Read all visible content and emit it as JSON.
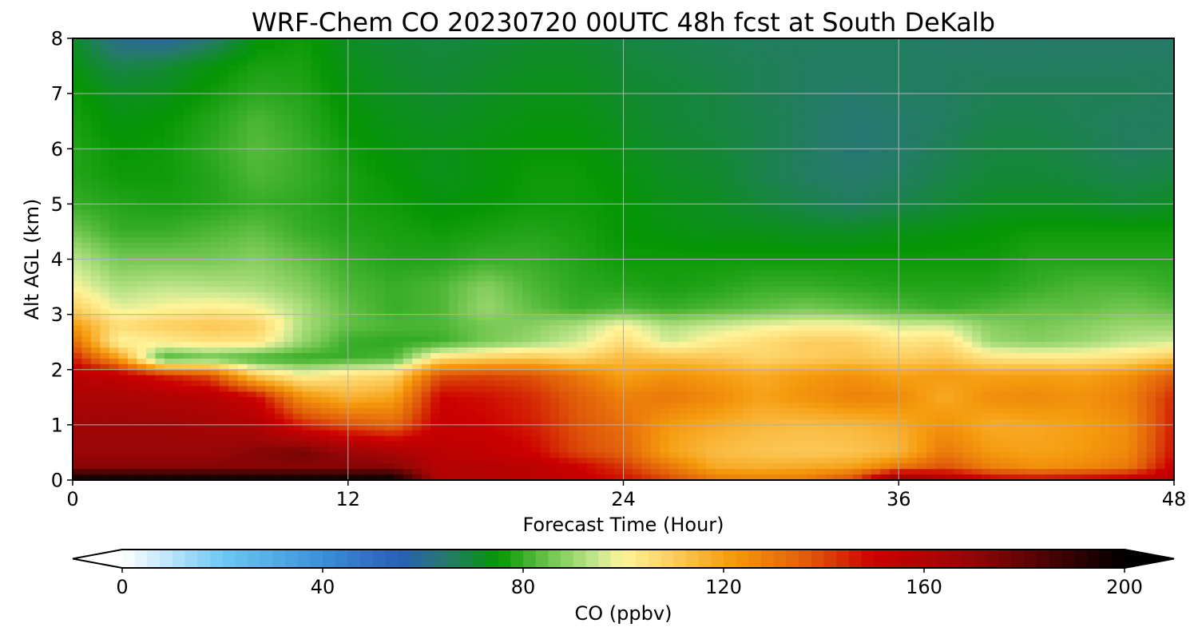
{
  "chart_data": {
    "type": "heatmap",
    "title": "WRF-Chem CO  20230720 00UTC 48h fcst at South DeKalb",
    "xlabel": "Forecast Time (Hour)",
    "ylabel": "Alt AGL (km)",
    "xlim": [
      0,
      48
    ],
    "ylim": [
      0,
      8
    ],
    "xticks": [
      0,
      12,
      24,
      36,
      48
    ],
    "yticks": [
      0,
      1,
      2,
      3,
      4,
      5,
      6,
      7,
      8
    ],
    "grid": true,
    "colorbar": {
      "label": "CO  (ppbv)",
      "ticks": [
        0,
        40,
        80,
        120,
        160,
        200
      ],
      "range": [
        0,
        200
      ],
      "extend": "both",
      "colors": {
        "under": "#ffffff",
        "over": "#000000",
        "stops": [
          {
            "value": 0,
            "color": "#ffffff"
          },
          {
            "value": 20,
            "color": "#6ec8f4"
          },
          {
            "value": 40,
            "color": "#3d8fd6"
          },
          {
            "value": 55,
            "color": "#2a5fb8"
          },
          {
            "value": 65,
            "color": "#257a6a"
          },
          {
            "value": 75,
            "color": "#049604"
          },
          {
            "value": 85,
            "color": "#6cc44c"
          },
          {
            "value": 95,
            "color": "#c8e890"
          },
          {
            "value": 100,
            "color": "#fff49a"
          },
          {
            "value": 110,
            "color": "#fccd5e"
          },
          {
            "value": 122,
            "color": "#f59a0c"
          },
          {
            "value": 137,
            "color": "#e05a0a"
          },
          {
            "value": 150,
            "color": "#cc0000"
          },
          {
            "value": 168,
            "color": "#9a0606"
          },
          {
            "value": 185,
            "color": "#4a0303"
          },
          {
            "value": 200,
            "color": "#000000"
          }
        ]
      }
    },
    "field": {
      "units": "ppbv",
      "hours": [
        0,
        2,
        4,
        6,
        8,
        10,
        12,
        14,
        16,
        18,
        20,
        22,
        24,
        26,
        28,
        30,
        32,
        34,
        36,
        38,
        40,
        42,
        44,
        46,
        48
      ],
      "altitudes_km": [
        0,
        0.25,
        0.5,
        1,
        1.5,
        1.9,
        2.2,
        2.5,
        2.8,
        3.1,
        3.5,
        4,
        4.5,
        5,
        5.5,
        6,
        6.5,
        7,
        7.5,
        8
      ],
      "values": [
        [
          200,
          200,
          200,
          200,
          200,
          200,
          200,
          200,
          160,
          158,
          156,
          152,
          148,
          140,
          130,
          128,
          130,
          140,
          172,
          160,
          152,
          150,
          152,
          154,
          158
        ],
        [
          172,
          172,
          172,
          172,
          172,
          172,
          172,
          172,
          158,
          158,
          156,
          150,
          142,
          130,
          118,
          117,
          118,
          120,
          130,
          138,
          128,
          124,
          126,
          130,
          152
        ],
        [
          168,
          168,
          168,
          168,
          172,
          176,
          168,
          162,
          156,
          154,
          150,
          140,
          135,
          120,
          114,
          112,
          111,
          112,
          115,
          130,
          122,
          120,
          122,
          126,
          148
        ],
        [
          166,
          166,
          166,
          164,
          160,
          145,
          138,
          134,
          152,
          150,
          146,
          138,
          132,
          122,
          118,
          115,
          114,
          115,
          118,
          124,
          118,
          119,
          121,
          125,
          146
        ],
        [
          162,
          162,
          160,
          158,
          150,
          124,
          116,
          120,
          150,
          148,
          144,
          136,
          128,
          130,
          126,
          120,
          124,
          128,
          126,
          118,
          125,
          126,
          124,
          128,
          144
        ],
        [
          156,
          154,
          145,
          138,
          110,
          100,
          105,
          108,
          138,
          140,
          138,
          130,
          120,
          124,
          121,
          118,
          122,
          124,
          120,
          122,
          120,
          121,
          120,
          124,
          136
        ],
        [
          146,
          122,
          80,
          84,
          80,
          79,
          80,
          82,
          106,
          110,
          112,
          108,
          115,
          113,
          112,
          108,
          110,
          112,
          110,
          112,
          105,
          104,
          104,
          106,
          112
        ],
        [
          134,
          100,
          102,
          105,
          104,
          90,
          80,
          79,
          80,
          86,
          90,
          96,
          106,
          96,
          102,
          106,
          110,
          110,
          104,
          106,
          90,
          88,
          90,
          94,
          96
        ],
        [
          122,
          106,
          110,
          112,
          110,
          92,
          84,
          82,
          82,
          86,
          88,
          92,
          100,
          92,
          95,
          98,
          100,
          100,
          96,
          96,
          88,
          86,
          88,
          90,
          90
        ],
        [
          110,
          98,
          100,
          102,
          100,
          92,
          84,
          80,
          82,
          90,
          84,
          80,
          82,
          80,
          82,
          84,
          86,
          84,
          82,
          80,
          82,
          84,
          84,
          86,
          84
        ],
        [
          100,
          92,
          94,
          93,
          92,
          88,
          82,
          80,
          82,
          88,
          82,
          79,
          78,
          77,
          78,
          80,
          80,
          79,
          78,
          78,
          78,
          80,
          82,
          82,
          80
        ],
        [
          94,
          86,
          86,
          86,
          88,
          84,
          80,
          78,
          78,
          80,
          80,
          78,
          76,
          76,
          76,
          76,
          76,
          76,
          76,
          76,
          76,
          78,
          78,
          78,
          78
        ],
        [
          86,
          80,
          80,
          82,
          84,
          80,
          78,
          77,
          76,
          77,
          78,
          77,
          75,
          74,
          73,
          73,
          72,
          72,
          73,
          74,
          75,
          76,
          76,
          76,
          76
        ],
        [
          80,
          78,
          77,
          78,
          80,
          79,
          77,
          76,
          74,
          75,
          76,
          76,
          75,
          73,
          72,
          70,
          68,
          66,
          68,
          70,
          72,
          72,
          72,
          70,
          72
        ],
        [
          78,
          76,
          76,
          78,
          82,
          80,
          77,
          75,
          73,
          74,
          76,
          76,
          74,
          72,
          71,
          68,
          66,
          65,
          66,
          68,
          70,
          70,
          69,
          68,
          69
        ],
        [
          78,
          75,
          76,
          79,
          83,
          80,
          76,
          74,
          73,
          74,
          75,
          75,
          73,
          71,
          70,
          68,
          66,
          64,
          65,
          67,
          69,
          69,
          68,
          66,
          67
        ],
        [
          77,
          74,
          75,
          78,
          82,
          79,
          75,
          73,
          72,
          73,
          74,
          74,
          72,
          70,
          69,
          68,
          66,
          64,
          65,
          66,
          68,
          68,
          67,
          66,
          66
        ],
        [
          76,
          72,
          73,
          76,
          79,
          78,
          74,
          72,
          71,
          72,
          73,
          73,
          71,
          70,
          69,
          67,
          66,
          65,
          66,
          66,
          67,
          67,
          67,
          67,
          66
        ],
        [
          74,
          68,
          70,
          74,
          77,
          77,
          73,
          71,
          70,
          71,
          72,
          72,
          70,
          69,
          68,
          67,
          66,
          66,
          66,
          66,
          66,
          66,
          66,
          66,
          66
        ],
        [
          72,
          60,
          58,
          64,
          74,
          76,
          72,
          70,
          69,
          70,
          71,
          71,
          69,
          68,
          67,
          66,
          66,
          66,
          66,
          65,
          65,
          65,
          65,
          65,
          65
        ]
      ]
    }
  }
}
